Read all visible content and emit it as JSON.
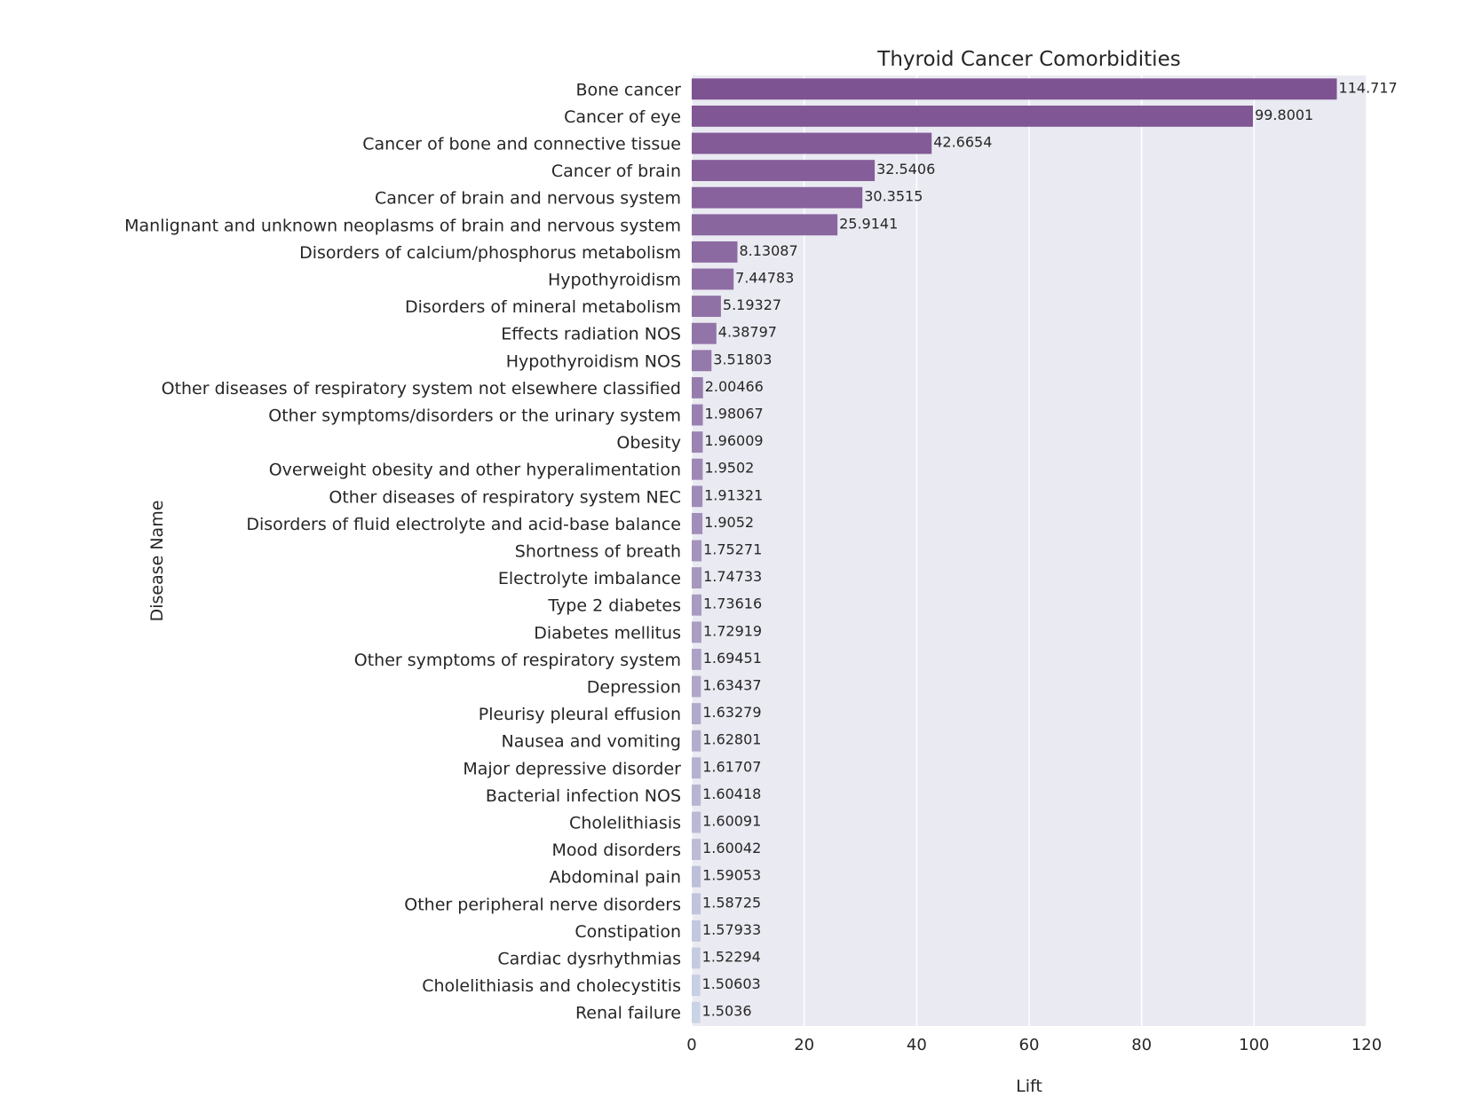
{
  "chart_data": {
    "type": "bar",
    "orientation": "horizontal",
    "title": "Thyroid Cancer Comorbidities",
    "xlabel": "Lift",
    "ylabel": "Disease Name",
    "xlim": [
      0,
      120
    ],
    "xticks": [
      0,
      20,
      40,
      60,
      80,
      100,
      120
    ],
    "grid": true,
    "categories": [
      "Bone cancer",
      "Cancer of eye",
      "Cancer of bone and connective tissue",
      "Cancer of brain",
      "Cancer of brain and nervous system",
      "Manlignant and unknown neoplasms of brain and nervous system",
      "Disorders of calcium/phosphorus metabolism",
      "Hypothyroidism",
      "Disorders of mineral metabolism",
      "Effects radiation NOS",
      "Hypothyroidism NOS",
      "Other diseases of respiratory system not elsewhere classified",
      "Other symptoms/disorders or the urinary system",
      "Obesity",
      "Overweight obesity and other hyperalimentation",
      "Other diseases of respiratory system NEC",
      "Disorders of fluid electrolyte and acid-base balance",
      "Shortness of breath",
      "Electrolyte imbalance",
      "Type 2 diabetes",
      "Diabetes mellitus",
      "Other symptoms of respiratory system",
      "Depression",
      "Pleurisy  pleural effusion",
      "Nausea and vomiting",
      "Major depressive disorder",
      "Bacterial infection NOS",
      "Cholelithiasis",
      "Mood disorders",
      "Abdominal pain",
      "Other peripheral nerve disorders",
      "Constipation",
      "Cardiac dysrhythmias",
      "Cholelithiasis and cholecystitis",
      "Renal failure"
    ],
    "values": [
      114.717,
      99.8001,
      42.6654,
      32.5406,
      30.3515,
      25.9141,
      8.13087,
      7.44783,
      5.19327,
      4.38797,
      3.51803,
      2.00466,
      1.98067,
      1.96009,
      1.9502,
      1.91321,
      1.9052,
      1.75271,
      1.74733,
      1.73616,
      1.72919,
      1.69451,
      1.63437,
      1.63279,
      1.62801,
      1.61707,
      1.60418,
      1.60091,
      1.60042,
      1.59053,
      1.58725,
      1.57933,
      1.52294,
      1.50603,
      1.5036
    ],
    "value_labels": [
      "114.717",
      "99.8001",
      "42.6654",
      "32.5406",
      "30.3515",
      "25.9141",
      "8.13087",
      "7.44783",
      "5.19327",
      "4.38797",
      "3.51803",
      "2.00466",
      "1.98067",
      "1.96009",
      "1.9502",
      "1.91321",
      "1.9052",
      "1.75271",
      "1.74733",
      "1.73616",
      "1.72919",
      "1.69451",
      "1.63437",
      "1.63279",
      "1.62801",
      "1.61707",
      "1.60418",
      "1.60091",
      "1.60042",
      "1.59053",
      "1.58725",
      "1.57933",
      "1.52294",
      "1.50603",
      "1.5036"
    ],
    "colors": {
      "background": "#eaeaf2",
      "grid": "#ffffff",
      "bar_palette_start": "#7e5392",
      "bar_palette_end": "#c9d3e6"
    }
  }
}
